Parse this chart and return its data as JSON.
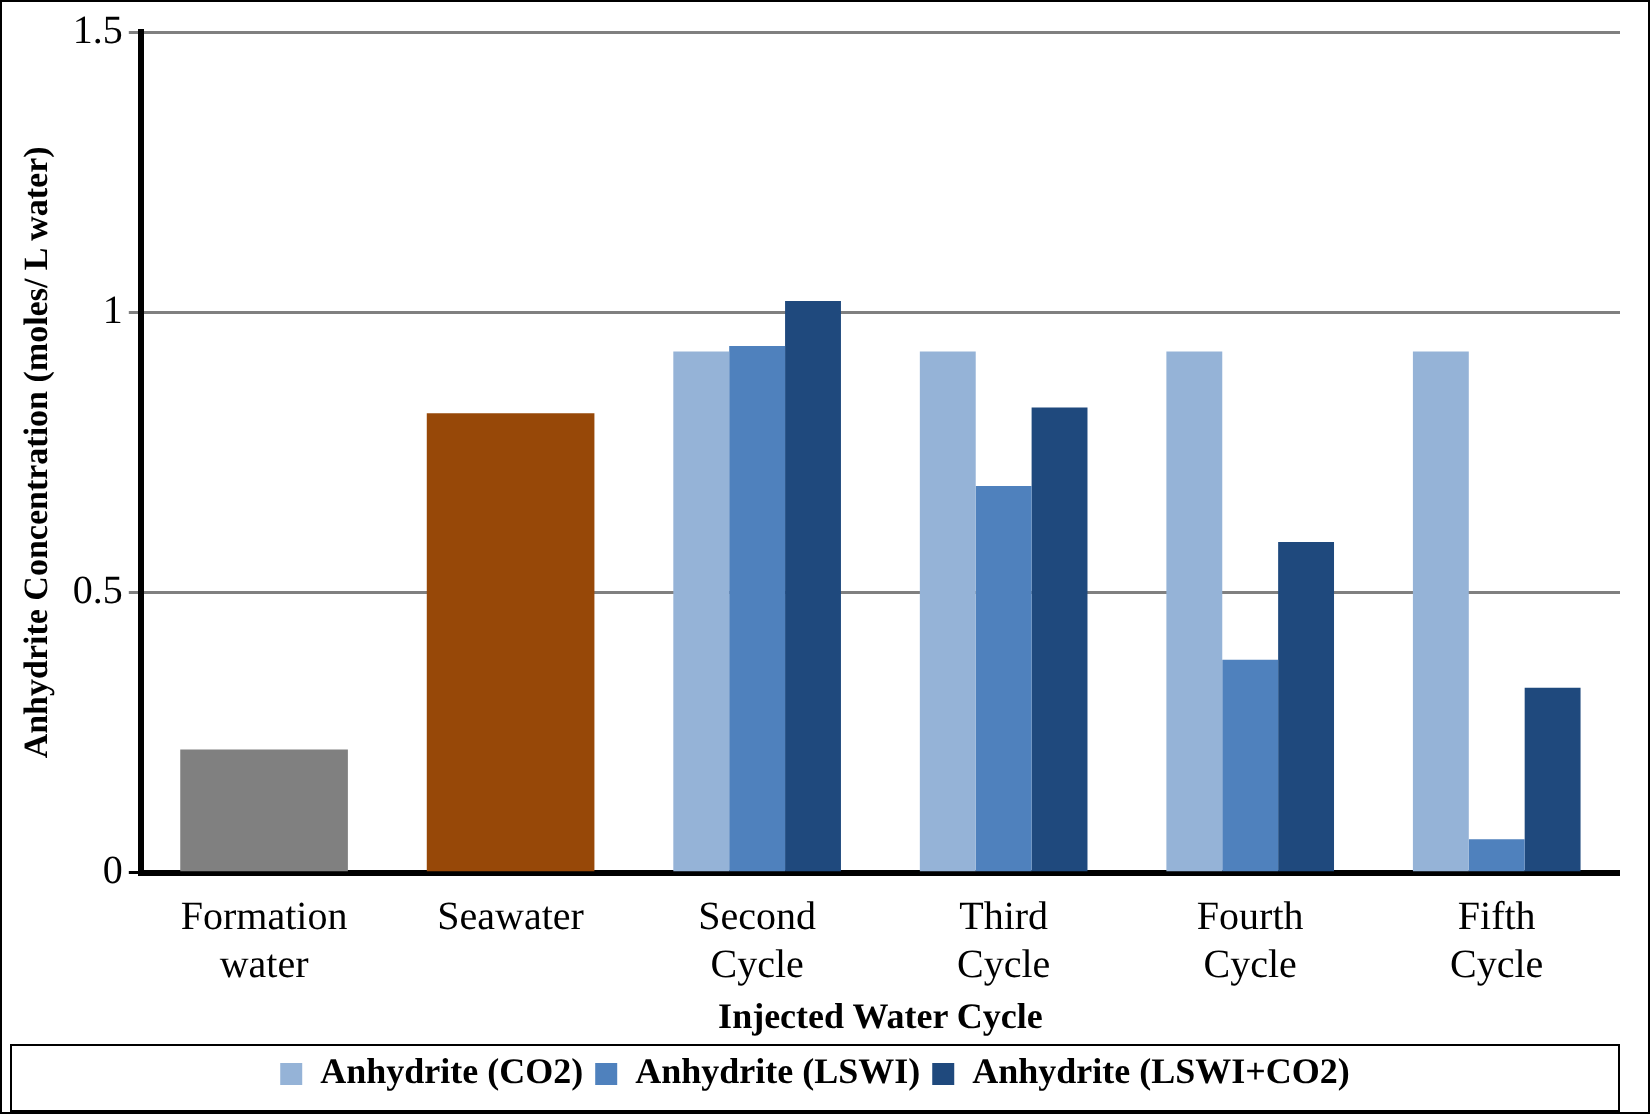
{
  "chart_data": {
    "type": "bar",
    "xlabel": "Injected Water Cycle",
    "ylabel": "Anhydrite Concentration (moles/ L water)",
    "categories": [
      "Formation water",
      "Seawater",
      "Second Cycle",
      "Third Cycle",
      "Fourth Cycle",
      "Fifth Cycle"
    ],
    "series": [
      {
        "colors": [
          "#808080",
          "#974808",
          null,
          null,
          null,
          null
        ],
        "values": [
          0.22,
          0.82,
          null,
          null,
          null,
          null
        ]
      },
      {
        "name": "Anhydrite (CO2)",
        "color": "#95b3d7",
        "values": [
          null,
          null,
          0.93,
          0.93,
          0.93,
          0.93
        ]
      },
      {
        "name": "Anhydrite (LSWI)",
        "color": "#4f81bd",
        "values": [
          null,
          null,
          0.94,
          0.69,
          0.38,
          0.06
        ]
      },
      {
        "name": "Anhydrite (LSWI+CO2)",
        "color": "#1f497d",
        "values": [
          null,
          null,
          1.02,
          0.83,
          0.59,
          0.33
        ]
      }
    ],
    "ylim": [
      0,
      1.5
    ],
    "yticks": [
      0,
      0.5,
      1,
      1.5
    ],
    "grid": "y",
    "legend": "bottom"
  }
}
